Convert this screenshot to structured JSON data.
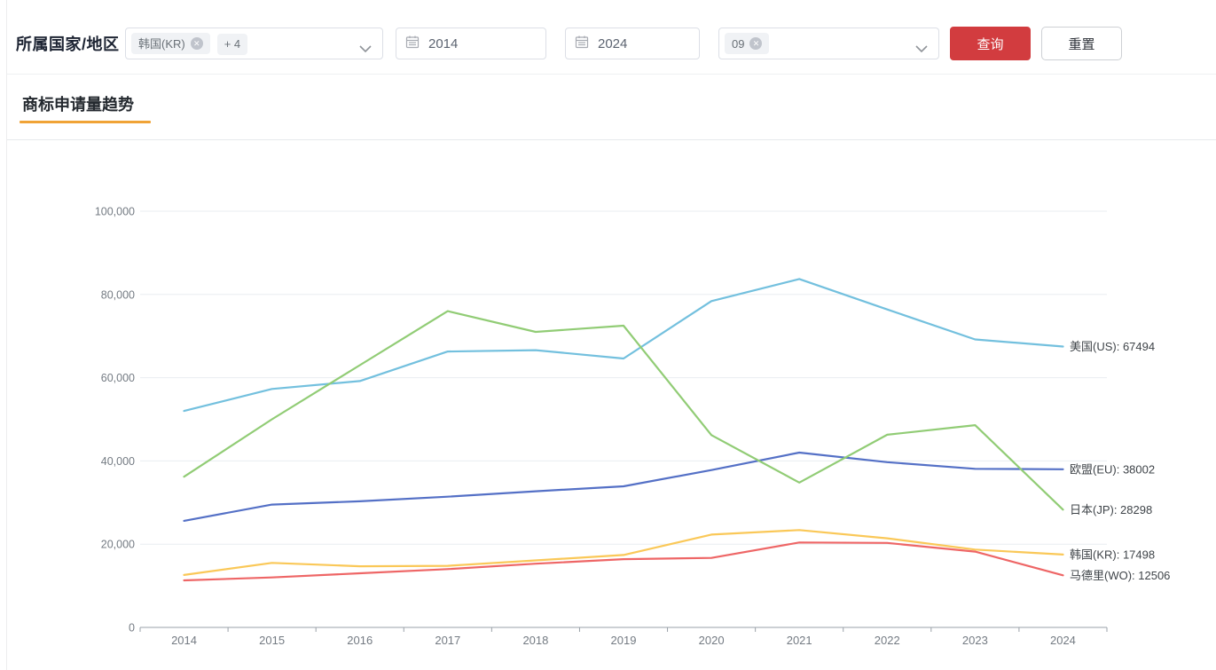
{
  "filters": {
    "label": "所属国家/地区",
    "country_select": {
      "tags": [
        {
          "text": "韩国(KR)",
          "closable": true
        },
        {
          "text": "+ 4",
          "closable": false
        }
      ]
    },
    "year_from": "2014",
    "year_to": "2024",
    "class_select": {
      "tags": [
        {
          "text": "09",
          "closable": true
        }
      ]
    },
    "query_label": "查询",
    "reset_label": "重置"
  },
  "section": {
    "title": "商标申请量趋势"
  },
  "icons": {
    "close": "✕"
  },
  "colors": {
    "accent_orange": "#f0a336",
    "query_red": "#d23c3f",
    "grid": "#e9edf1",
    "axis": "#9aa1a8",
    "tick_text": "#747b83",
    "end_label_text": "#3f4449"
  },
  "chart_data": {
    "type": "line",
    "title": "商标申请量趋势",
    "x": [
      "2014",
      "2015",
      "2016",
      "2017",
      "2018",
      "2019",
      "2020",
      "2021",
      "2022",
      "2023",
      "2024"
    ],
    "ylim": [
      0,
      100000
    ],
    "ytick_step": 20000,
    "ytick_labels": [
      "0",
      "20,000",
      "40,000",
      "60,000",
      "80,000",
      "100,000"
    ],
    "grid": true,
    "legend_position": "labels-at-line-end-right",
    "series": [
      {
        "name": "美国(US)",
        "color": "#73c0de",
        "values": [
          52000,
          57300,
          59200,
          66300,
          66600,
          64600,
          78400,
          83700,
          76400,
          69200,
          67494
        ],
        "end_label": "美国(US): 67494"
      },
      {
        "name": "欧盟(EU)",
        "color": "#5470c6",
        "values": [
          25600,
          29500,
          30300,
          31400,
          32700,
          33900,
          37800,
          42000,
          39700,
          38100,
          38002
        ],
        "end_label": "欧盟(EU): 38002"
      },
      {
        "name": "日本(JP)",
        "color": "#91cc75",
        "values": [
          36200,
          50000,
          63000,
          76000,
          71000,
          72500,
          46200,
          34800,
          46300,
          48600,
          28298
        ],
        "end_label": "日本(JP): 28298"
      },
      {
        "name": "韩国(KR)",
        "color": "#fac858",
        "values": [
          12600,
          15500,
          14700,
          14800,
          16100,
          17400,
          22300,
          23400,
          21400,
          18700,
          17498
        ],
        "end_label": "韩国(KR): 17498"
      },
      {
        "name": "马德里(WO)",
        "color": "#ee6666",
        "values": [
          11300,
          12000,
          13000,
          14000,
          15300,
          16400,
          16700,
          20400,
          20300,
          18200,
          12506
        ],
        "end_label": "马德里(WO): 12506"
      }
    ]
  }
}
